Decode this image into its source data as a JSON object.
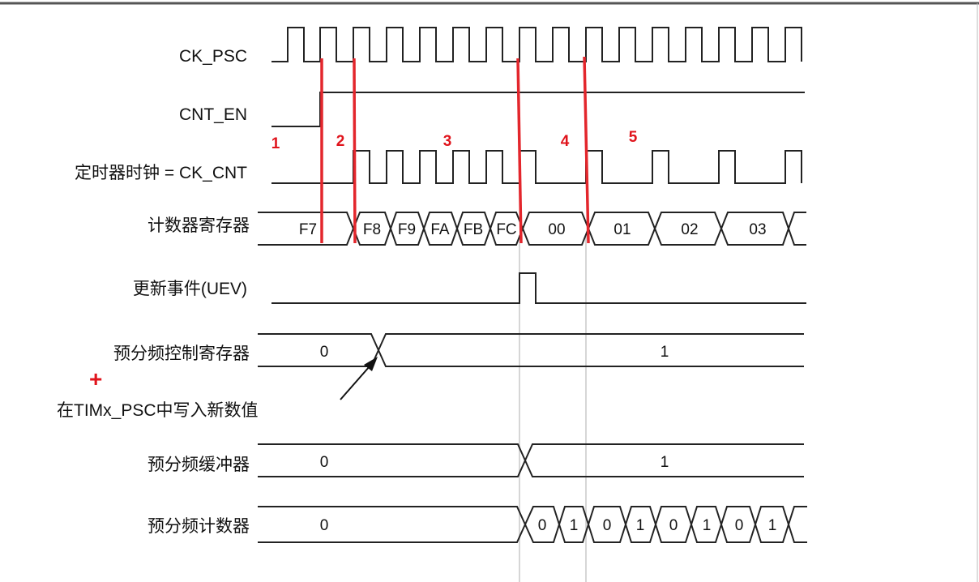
{
  "signals": {
    "ck_psc": "CK_PSC",
    "cnt_en": "CNT_EN",
    "timer_clock": "定时器时钟 = CK_CNT",
    "counter_register": "计数器寄存器",
    "update_event": "更新事件(UEV)",
    "prescaler_control_register": "预分频控制寄存器",
    "prescaler_buffer": "预分频缓冲器",
    "prescaler_counter": "预分频计数器"
  },
  "annotation": {
    "plus": "+",
    "write_note": "在TIMx_PSC中写入新数值"
  },
  "counter_values": [
    "F7",
    "F8",
    "F9",
    "FA",
    "FB",
    "FC",
    "00",
    "01",
    "02",
    "03"
  ],
  "prescaler_control_values": [
    "0",
    "1"
  ],
  "prescaler_buffer_values": [
    "0",
    "1"
  ],
  "prescaler_counter_values": [
    "0",
    "0",
    "1",
    "0",
    "1",
    "0",
    "1",
    "0",
    "1"
  ],
  "phase_markers": [
    "1",
    "2",
    "3",
    "4",
    "5"
  ],
  "colors": {
    "waveform": "#222222",
    "marker": "#e3262c",
    "guide": "#c8c8c8"
  }
}
